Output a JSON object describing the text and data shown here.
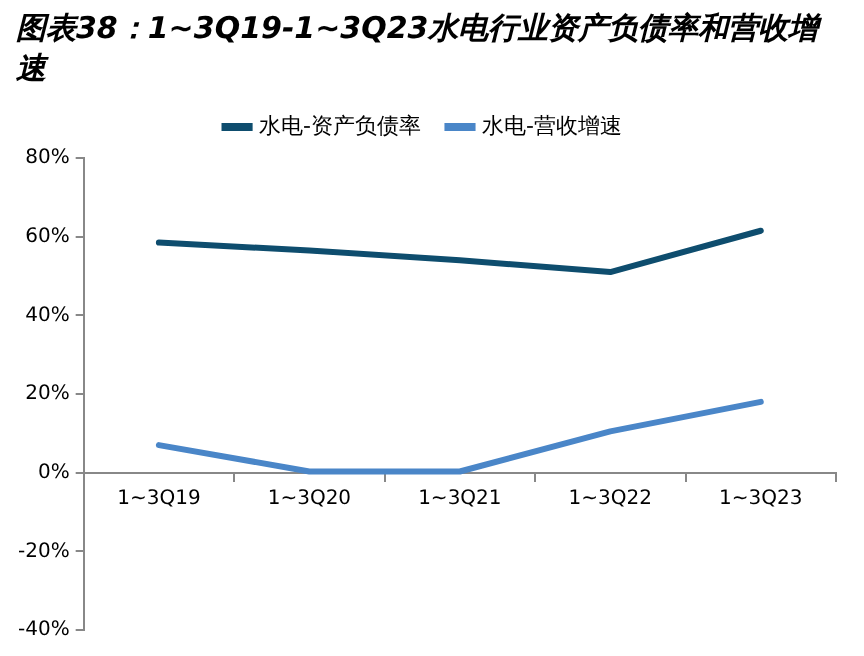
{
  "chart_data": {
    "type": "line",
    "title": "图表38：1~3Q19-1~3Q23水电行业资产负债率和营收增速",
    "categories": [
      "1~3Q19",
      "1~3Q20",
      "1~3Q21",
      "1~3Q22",
      "1~3Q23"
    ],
    "series": [
      {
        "name": "水电-资产负债率",
        "color": "#0e4d6e",
        "values": [
          58.5,
          56.5,
          54,
          51,
          61.5
        ]
      },
      {
        "name": "水电-营收增速",
        "color": "#4a86c8",
        "values": [
          7,
          0.3,
          0.3,
          10.5,
          18
        ]
      }
    ],
    "ylim": [
      -40,
      80
    ],
    "yticks": [
      {
        "value": -40,
        "label": "-40%"
      },
      {
        "value": -20,
        "label": "-20%"
      },
      {
        "value": 0,
        "label": "0%"
      },
      {
        "value": 20,
        "label": "20%"
      },
      {
        "value": 40,
        "label": "40%"
      },
      {
        "value": 60,
        "label": "60%"
      },
      {
        "value": 80,
        "label": "80%"
      }
    ],
    "grid": false,
    "legend": "top",
    "marker": "none",
    "line_style": "solid"
  }
}
